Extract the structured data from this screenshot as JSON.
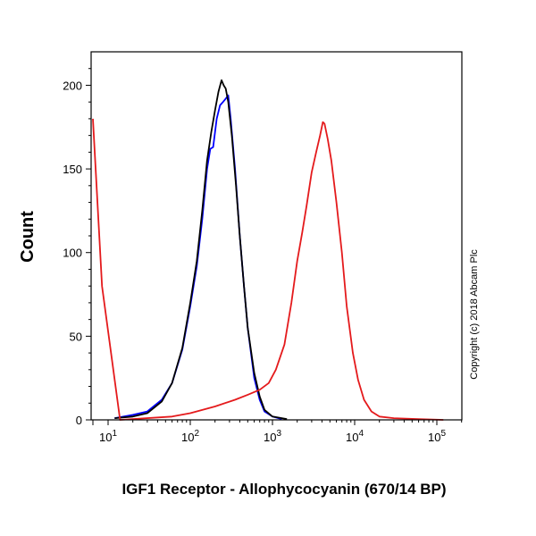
{
  "chart_data": {
    "type": "line",
    "xlabel": "IGF1 Receptor - Allophycocyanin (670/14 BP)",
    "ylabel": "Count",
    "x_scale": "biexponential",
    "xlim": [
      0,
      250000
    ],
    "ylim": [
      0,
      220
    ],
    "x_ticks": [
      {
        "value": 10,
        "base": "10",
        "exp": "1"
      },
      {
        "value": 100,
        "base": "10",
        "exp": "2"
      },
      {
        "value": 1000,
        "base": "10",
        "exp": "3"
      },
      {
        "value": 10000,
        "base": "10",
        "exp": "4"
      },
      {
        "value": 100000,
        "base": "10",
        "exp": "5"
      }
    ],
    "y_ticks": [
      {
        "value": 0,
        "label": "0"
      },
      {
        "value": 50,
        "label": "50"
      },
      {
        "value": 100,
        "label": "100"
      },
      {
        "value": 150,
        "label": "150"
      },
      {
        "value": 200,
        "label": "200"
      }
    ],
    "annotation": "Copyright (c) 2018 Abcam Plc",
    "series": [
      {
        "color": "#0000ff",
        "points": [
          [
            12,
            1
          ],
          [
            20,
            3
          ],
          [
            30,
            5
          ],
          [
            45,
            12
          ],
          [
            60,
            22
          ],
          [
            80,
            42
          ],
          [
            100,
            68
          ],
          [
            120,
            92
          ],
          [
            140,
            120
          ],
          [
            160,
            150
          ],
          [
            175,
            162
          ],
          [
            190,
            163
          ],
          [
            210,
            180
          ],
          [
            230,
            188
          ],
          [
            250,
            190
          ],
          [
            270,
            192
          ],
          [
            290,
            194
          ],
          [
            310,
            180
          ],
          [
            350,
            150
          ],
          [
            400,
            110
          ],
          [
            450,
            80
          ],
          [
            500,
            55
          ],
          [
            600,
            25
          ],
          [
            700,
            12
          ],
          [
            800,
            5
          ],
          [
            1000,
            2
          ],
          [
            1300,
            0.5
          ]
        ]
      },
      {
        "color": "#000000",
        "points": [
          [
            12,
            1
          ],
          [
            20,
            2
          ],
          [
            30,
            4
          ],
          [
            45,
            11
          ],
          [
            60,
            22
          ],
          [
            80,
            43
          ],
          [
            100,
            70
          ],
          [
            120,
            95
          ],
          [
            140,
            125
          ],
          [
            160,
            155
          ],
          [
            180,
            172
          ],
          [
            200,
            185
          ],
          [
            220,
            196
          ],
          [
            240,
            203
          ],
          [
            255,
            200
          ],
          [
            270,
            198
          ],
          [
            290,
            190
          ],
          [
            320,
            170
          ],
          [
            360,
            140
          ],
          [
            400,
            110
          ],
          [
            450,
            80
          ],
          [
            500,
            55
          ],
          [
            600,
            28
          ],
          [
            700,
            14
          ],
          [
            800,
            6
          ],
          [
            1000,
            2
          ],
          [
            1500,
            0.5
          ]
        ]
      },
      {
        "color": "#e41a1c",
        "points": [
          [
            0,
            180
          ],
          [
            6,
            80
          ],
          [
            14,
            0
          ],
          [
            60,
            2
          ],
          [
            100,
            4
          ],
          [
            200,
            8
          ],
          [
            350,
            12
          ],
          [
            500,
            15
          ],
          [
            700,
            18
          ],
          [
            900,
            22
          ],
          [
            1100,
            30
          ],
          [
            1400,
            45
          ],
          [
            1700,
            70
          ],
          [
            2000,
            95
          ],
          [
            2300,
            112
          ],
          [
            2600,
            128
          ],
          [
            3000,
            148
          ],
          [
            3400,
            160
          ],
          [
            3800,
            170
          ],
          [
            4100,
            178
          ],
          [
            4300,
            177
          ],
          [
            4700,
            168
          ],
          [
            5200,
            155
          ],
          [
            6000,
            130
          ],
          [
            7000,
            100
          ],
          [
            8000,
            68
          ],
          [
            9500,
            40
          ],
          [
            11000,
            24
          ],
          [
            13000,
            12
          ],
          [
            16000,
            5
          ],
          [
            20000,
            2
          ],
          [
            30000,
            1
          ],
          [
            60000,
            0.5
          ],
          [
            120000,
            0
          ]
        ]
      }
    ]
  }
}
